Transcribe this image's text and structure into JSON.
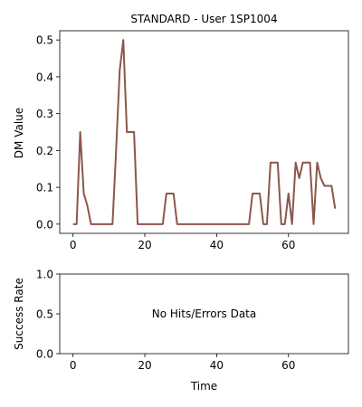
{
  "chart_data": [
    {
      "type": "line",
      "title": "STANDARD - User 1SP1004",
      "xlabel": "",
      "ylabel": "DM Value",
      "xlim": [
        -3.7,
        76.7
      ],
      "ylim": [
        -0.025,
        0.525
      ],
      "xticks": [
        0,
        20,
        40,
        60
      ],
      "xtick_labels": [
        "0",
        "20",
        "40",
        "60"
      ],
      "yticks": [
        0.0,
        0.1,
        0.2,
        0.3,
        0.4,
        0.5
      ],
      "ytick_labels": [
        "0.0",
        "0.1",
        "0.2",
        "0.3",
        "0.4",
        "0.5"
      ],
      "grid": false,
      "series": [
        {
          "color": "#8c564b",
          "x": [
            0,
            1,
            2,
            3,
            4,
            5,
            6,
            7,
            8,
            9,
            10,
            11,
            12,
            13,
            14,
            15,
            16,
            17,
            18,
            19,
            20,
            21,
            22,
            23,
            24,
            25,
            26,
            27,
            28,
            29,
            30,
            31,
            32,
            33,
            34,
            35,
            36,
            37,
            38,
            39,
            40,
            41,
            42,
            43,
            44,
            45,
            46,
            47,
            48,
            49,
            50,
            51,
            52,
            53,
            54,
            55,
            56,
            57,
            58,
            59,
            60,
            61,
            62,
            63,
            64,
            65,
            66,
            67,
            68,
            69,
            70,
            71,
            72,
            73
          ],
          "y": [
            0,
            0,
            0.25,
            0.083,
            0.05,
            0,
            0,
            0,
            0,
            0,
            0,
            0,
            0.2,
            0.417,
            0.5,
            0.25,
            0.25,
            0.25,
            0,
            0,
            0,
            0,
            0,
            0,
            0,
            0,
            0.083,
            0.083,
            0.083,
            0,
            0,
            0,
            0,
            0,
            0,
            0,
            0,
            0,
            0,
            0,
            0,
            0,
            0,
            0,
            0,
            0,
            0,
            0,
            0,
            0,
            0.083,
            0.083,
            0.083,
            0,
            0,
            0.167,
            0.167,
            0.167,
            0,
            0,
            0.083,
            0,
            0.167,
            0.125,
            0.167,
            0.167,
            0.167,
            0,
            0.167,
            0.125,
            0.104,
            0.104,
            0.104,
            0.042
          ]
        }
      ]
    },
    {
      "type": "line",
      "title": "",
      "xlabel": "Time",
      "ylabel": "Success Rate",
      "xlim": [
        -3.7,
        76.7
      ],
      "ylim": [
        0.0,
        1.0
      ],
      "xticks": [
        0,
        20,
        40,
        60
      ],
      "xtick_labels": [
        "0",
        "20",
        "40",
        "60"
      ],
      "yticks": [
        0.0,
        0.5,
        1.0
      ],
      "ytick_labels": [
        "0.0",
        "0.5",
        "1.0"
      ],
      "grid": false,
      "annotation": "No Hits/Errors Data",
      "series": []
    }
  ]
}
